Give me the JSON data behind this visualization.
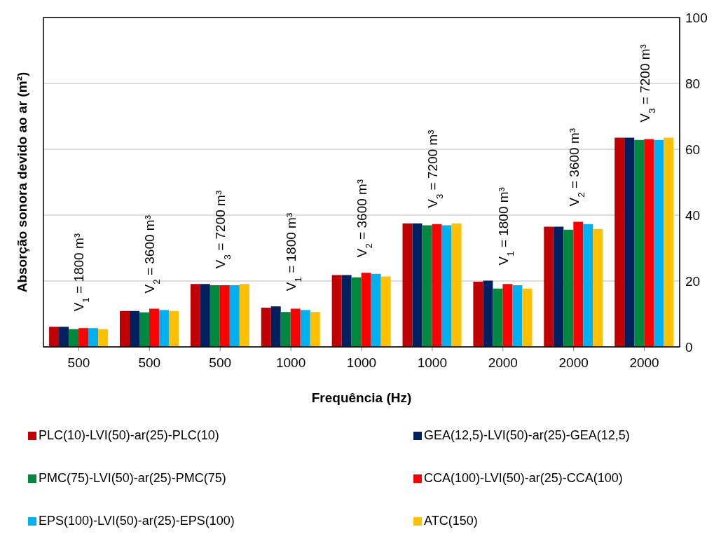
{
  "chart_data": {
    "type": "bar",
    "xlabel": "Frequência (Hz)",
    "ylabel": "Absorção sonora devido ao ar (m²)",
    "categories": [
      "500",
      "500",
      "500",
      "1000",
      "1000",
      "1000",
      "2000",
      "2000",
      "2000"
    ],
    "series": [
      {
        "name": "PLC(10)-LVI(50)-ar(25)-PLC(10)",
        "color": "#c00000",
        "values": [
          6.1,
          10.9,
          19.1,
          11.9,
          21.8,
          37.5,
          19.8,
          36.5,
          63.5
        ]
      },
      {
        "name": "GEA(12,5)-LVI(50)-ar(25)-GEA(12,5)",
        "color": "#002060",
        "values": [
          6.1,
          10.9,
          19.1,
          12.3,
          21.8,
          37.5,
          20.1,
          36.5,
          63.5
        ]
      },
      {
        "name": "PMC(75)-LVI(50)-ar(25)-PMC(75)",
        "color": "#00883e",
        "values": [
          5.4,
          10.5,
          18.7,
          10.6,
          21.1,
          36.9,
          17.7,
          35.6,
          62.8
        ]
      },
      {
        "name": "CCA(100)-LVI(50)-ar(25)-CCA(100)",
        "color": "#ff0000",
        "values": [
          5.7,
          11.6,
          18.7,
          11.6,
          22.5,
          37.3,
          19.1,
          38.0,
          63.1
        ]
      },
      {
        "name": "EPS(100)-LVI(50)-ar(25)-EPS(100)",
        "color": "#00b0f0",
        "values": [
          5.7,
          11.2,
          18.7,
          11.2,
          22.2,
          36.9,
          18.7,
          37.3,
          62.8
        ]
      },
      {
        "name": "ATC(150)",
        "color": "#ffc000",
        "values": [
          5.4,
          10.9,
          19.1,
          10.6,
          21.4,
          37.5,
          17.7,
          35.8,
          63.5
        ]
      }
    ],
    "annotations": [
      "V$_{1}$ = 1800 m³",
      "V$_{2}$ = 3600 m³",
      "V$_{3}$ = 7200 m³",
      "V$_{1}$ = 1800 m³",
      "V$_{2}$ = 3600 m³",
      "V$_{3}$ = 7200 m³",
      "V$_{1}$ = 1800 m³",
      "V$_{2}$ = 3600 m³",
      "V$_{3}$ = 7200 m³"
    ],
    "ylim": [
      0,
      100
    ],
    "yticks": [
      0,
      20,
      40,
      60,
      80,
      100
    ],
    "grid": "y",
    "legend": "bottom"
  }
}
